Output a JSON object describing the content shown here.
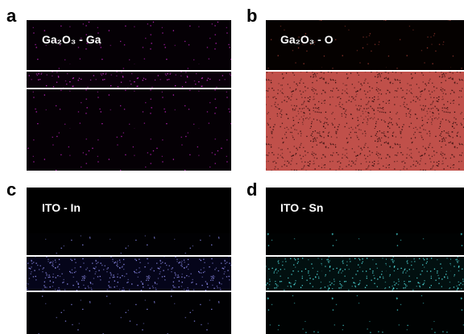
{
  "panels": [
    {
      "letter": "a",
      "label": "Ga₂O₃ - Ga"
    },
    {
      "letter": "b",
      "label": "Ga₂O₃ - O"
    },
    {
      "letter": "c",
      "label": "ITO - In"
    },
    {
      "letter": "d",
      "label": "ITO - Sn"
    }
  ]
}
